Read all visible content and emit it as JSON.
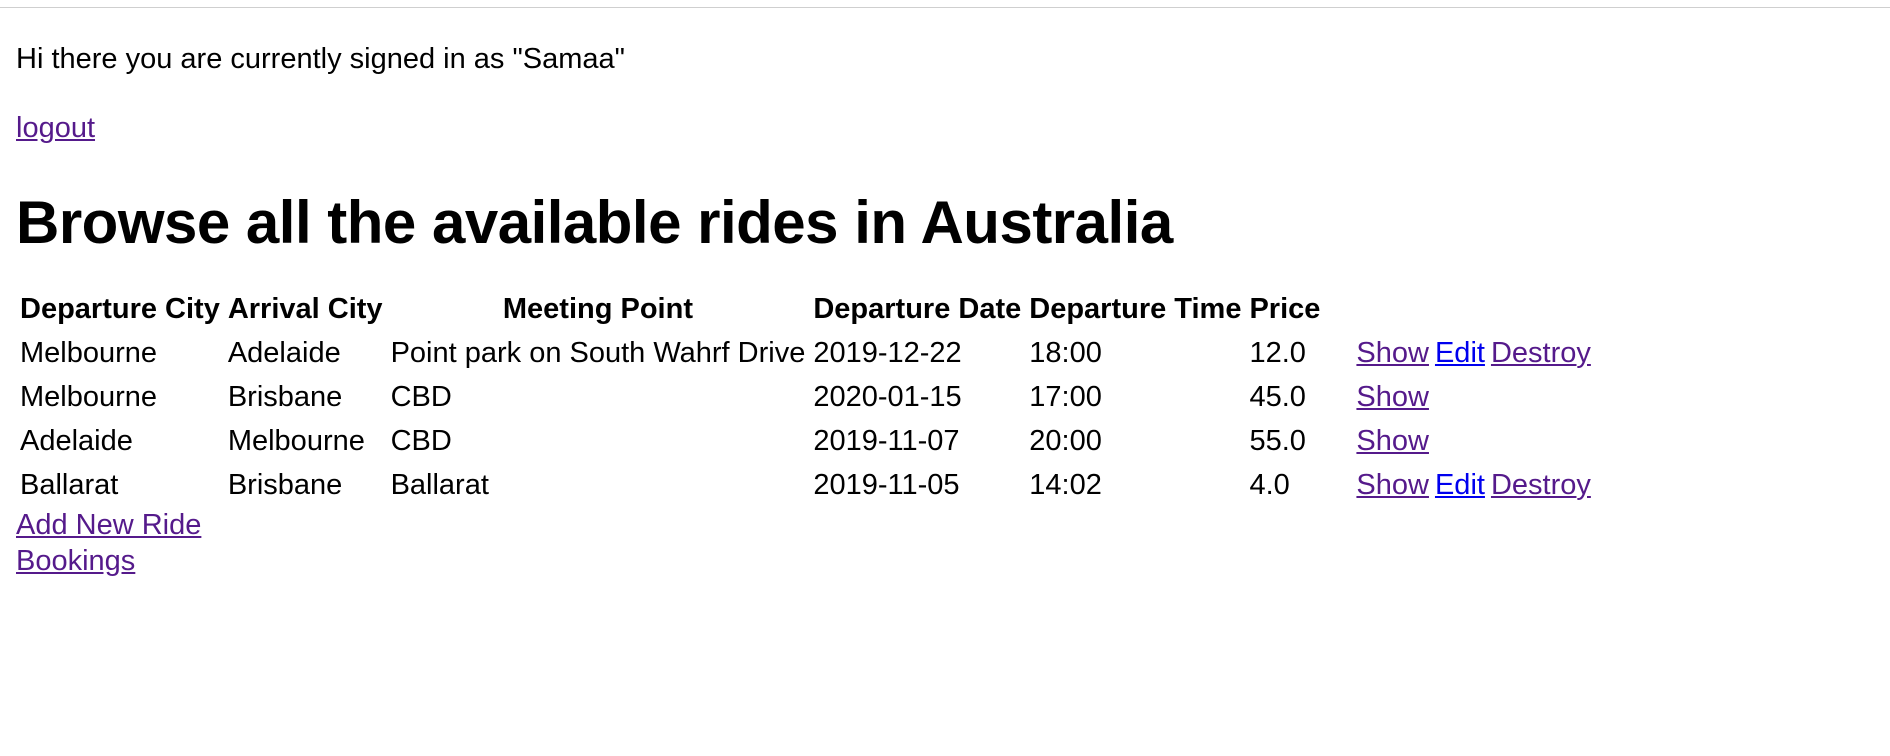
{
  "greeting": "Hi there you are currently signed in as \"Samaa\"",
  "logout_label": "logout",
  "page_title": "Browse all the available rides in Australia",
  "table": {
    "headers": {
      "departure_city": "Departure City",
      "arrival_city": "Arrival City",
      "meeting_point": "Meeting Point",
      "departure_date": "Departure Date",
      "departure_time": "Departure Time",
      "price": "Price"
    },
    "rows": [
      {
        "departure_city": "Melbourne",
        "arrival_city": "Adelaide",
        "meeting_point": "Point park on South Wahrf Drive",
        "departure_date": "2019-12-22",
        "departure_time": "18:00",
        "price": "12.0",
        "show": "Show",
        "edit": "Edit",
        "destroy": "Destroy"
      },
      {
        "departure_city": "Melbourne",
        "arrival_city": "Brisbane",
        "meeting_point": "CBD",
        "departure_date": "2020-01-15",
        "departure_time": "17:00",
        "price": "45.0",
        "show": "Show"
      },
      {
        "departure_city": "Adelaide",
        "arrival_city": "Melbourne",
        "meeting_point": "CBD",
        "departure_date": "2019-11-07",
        "departure_time": "20:00",
        "price": "55.0",
        "show": "Show"
      },
      {
        "departure_city": "Ballarat",
        "arrival_city": "Brisbane",
        "meeting_point": "Ballarat",
        "departure_date": "2019-11-05",
        "departure_time": "14:02",
        "price": "4.0",
        "show": "Show",
        "edit": "Edit",
        "destroy": "Destroy"
      }
    ]
  },
  "add_new_ride_label": "Add New Ride",
  "bookings_label": "Bookings",
  "colors": {
    "visited_link": "#551a8b",
    "unvisited_link": "#0000ee",
    "text": "#000000",
    "background": "#ffffff"
  }
}
